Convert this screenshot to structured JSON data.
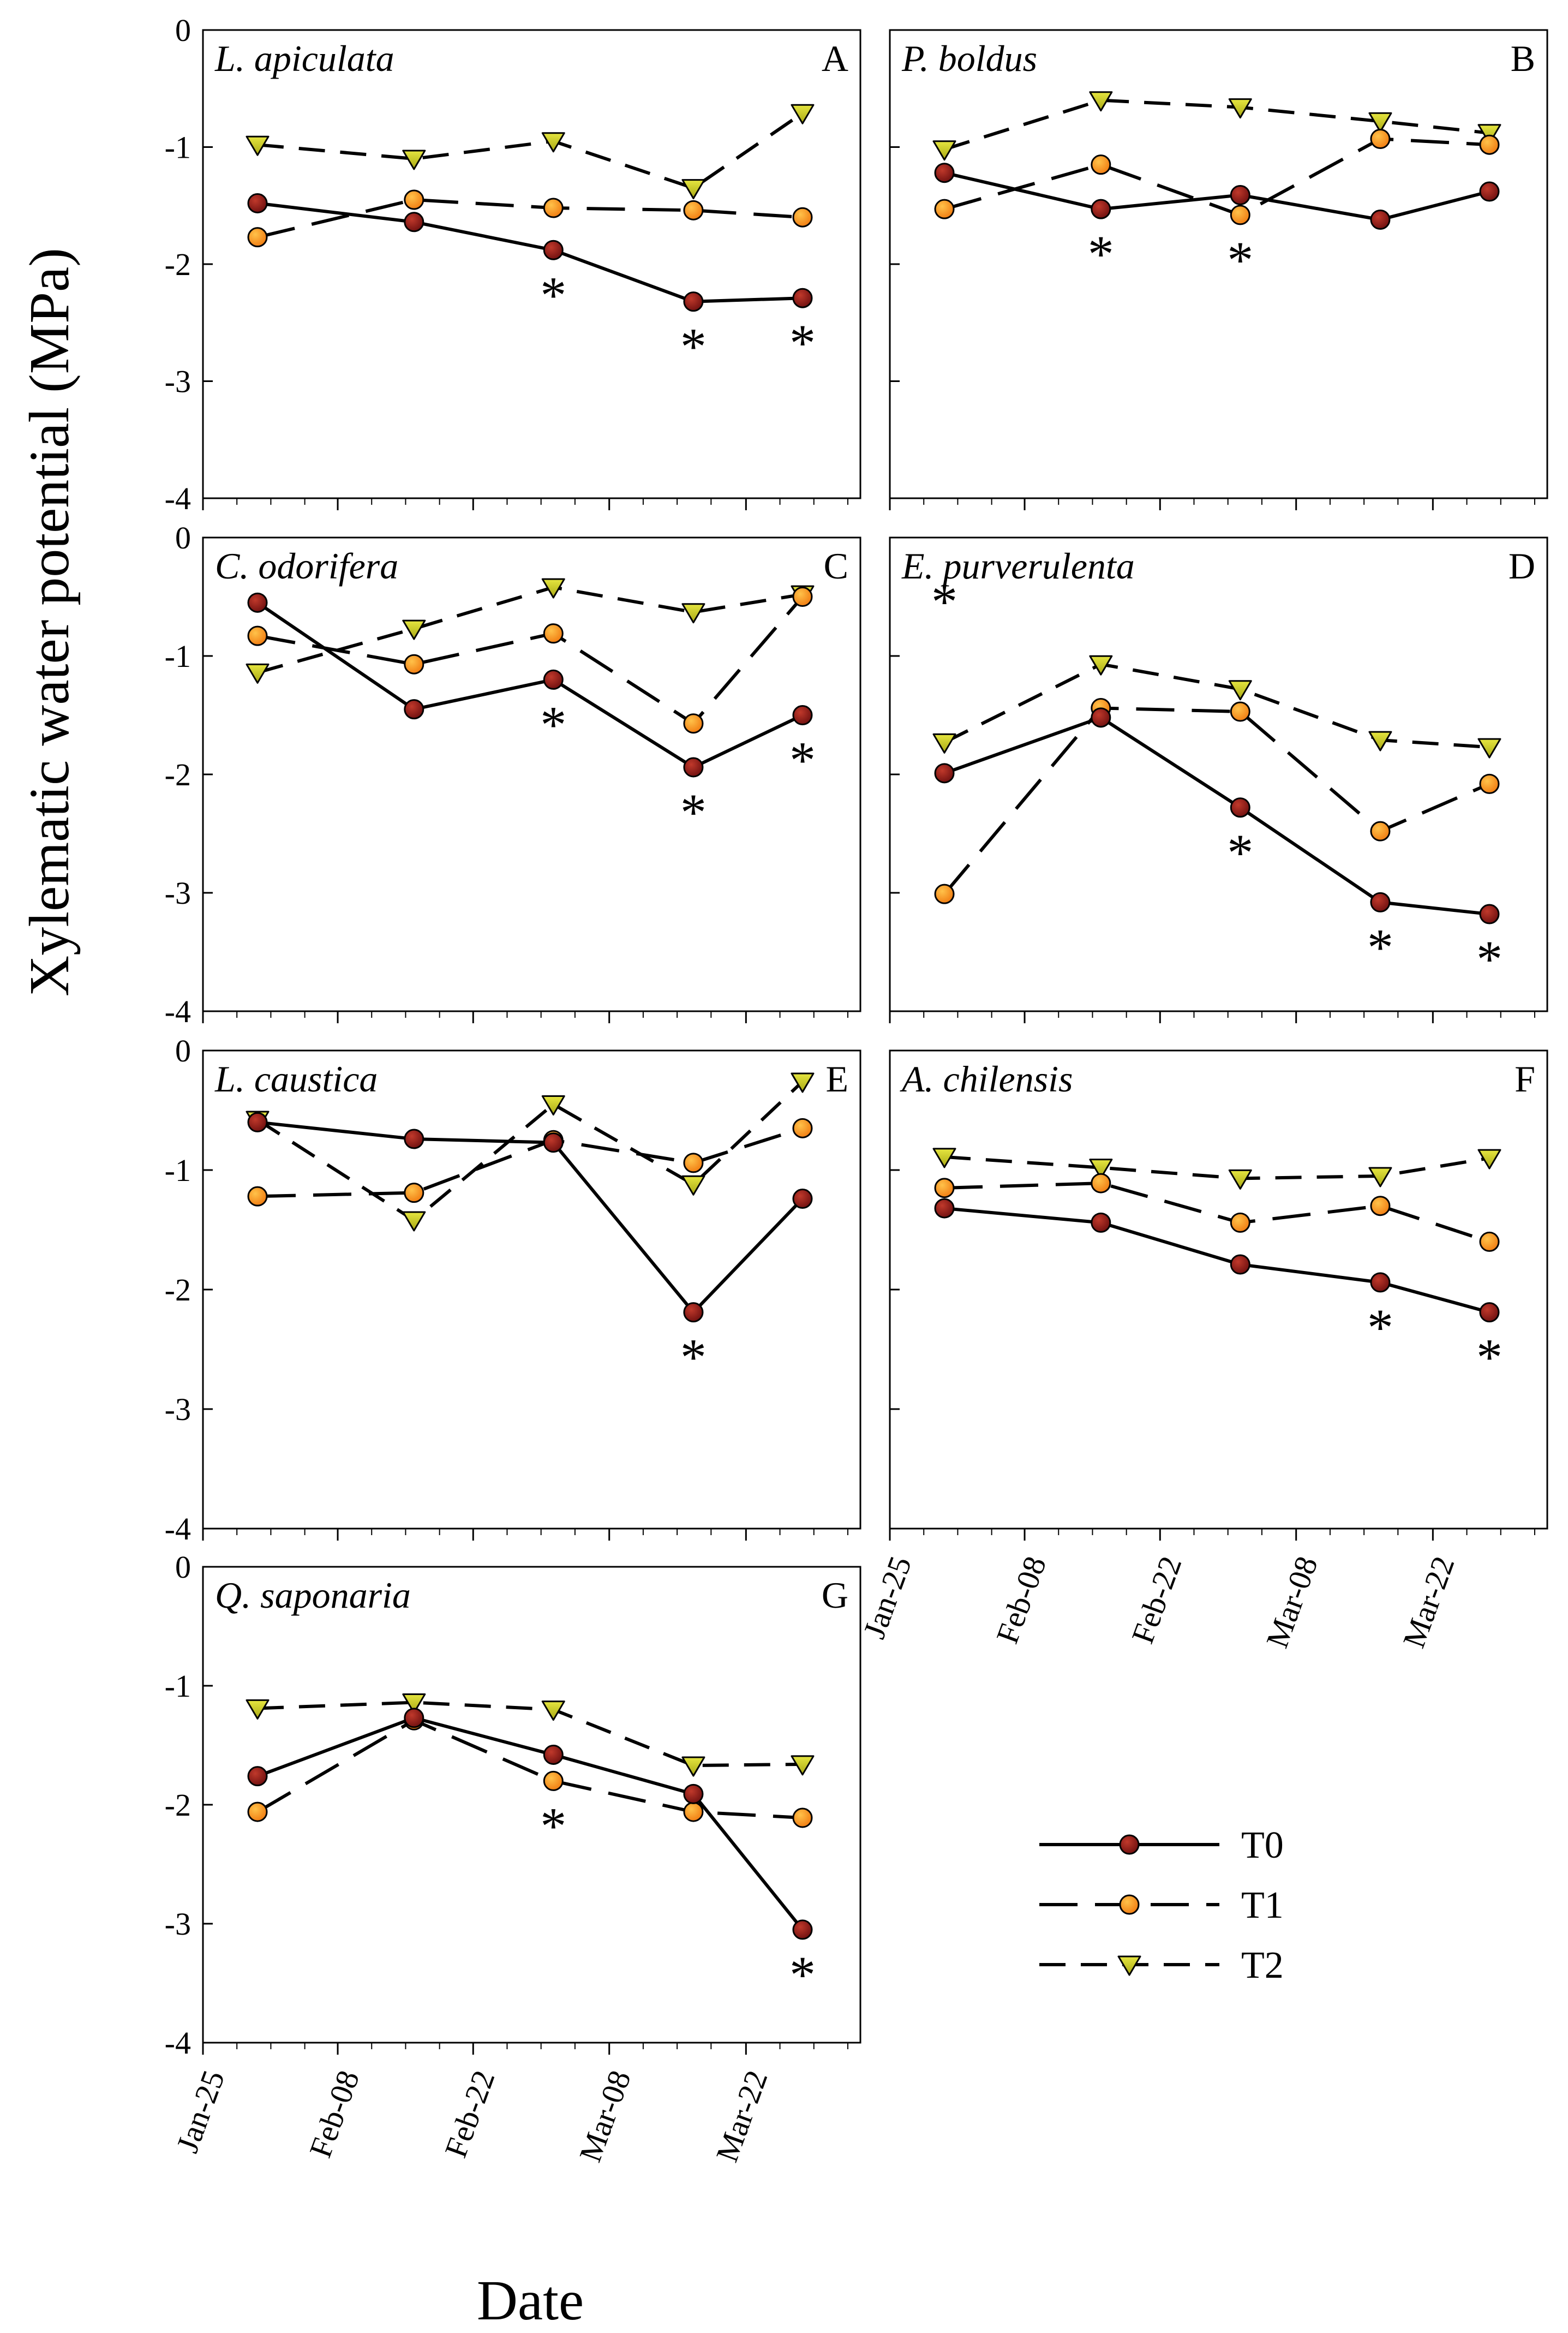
{
  "figure": {
    "y_axis_title": "Xylematic water potential (MPa)",
    "x_axis_title": "Date",
    "series_styles": {
      "T0": {
        "line": "solid",
        "marker": "circle",
        "fill": "#8B1A1A"
      },
      "T1": {
        "line": "long-dash",
        "marker": "circle",
        "fill": "#FF9A1F"
      },
      "T2": {
        "line": "dash",
        "marker": "triangle-down",
        "fill": "#C8C81E"
      }
    },
    "legend": [
      "T0",
      "T1",
      "T2"
    ]
  },
  "chart_data": [
    {
      "type": "line",
      "panel": "A",
      "title": "L. apiculata",
      "x_tick_labels": [],
      "ylim": [
        -4,
        0
      ],
      "y_ticks": [
        "0",
        "-1",
        "-2",
        "-3",
        "-4"
      ],
      "x": [
        "Jan-30",
        "Feb-13",
        "Feb-27",
        "Mar-13",
        "Mar-25"
      ],
      "series": [
        {
          "name": "T0",
          "values": [
            -1.48,
            -1.64,
            -1.88,
            -2.32,
            -2.29
          ]
        },
        {
          "name": "T1",
          "values": [
            -1.77,
            -1.45,
            -1.52,
            -1.54,
            -1.6
          ]
        },
        {
          "name": "T2",
          "values": [
            -0.98,
            -1.1,
            -0.95,
            -1.35,
            -0.71
          ]
        }
      ],
      "significance": [
        "",
        "",
        "*",
        "*",
        "*"
      ]
    },
    {
      "type": "line",
      "panel": "B",
      "title": "P. boldus",
      "x_tick_labels": [],
      "ylim": [
        -4,
        0
      ],
      "y_ticks": [],
      "x": [
        "Jan-30",
        "Feb-13",
        "Feb-27",
        "Mar-13",
        "Mar-25"
      ],
      "series": [
        {
          "name": "T0",
          "values": [
            -1.22,
            -1.53,
            -1.41,
            -1.62,
            -1.38
          ]
        },
        {
          "name": "T1",
          "values": [
            -1.53,
            -1.15,
            -1.58,
            -0.93,
            -0.98
          ]
        },
        {
          "name": "T2",
          "values": [
            -1.02,
            -0.6,
            -0.66,
            -0.78,
            -0.88
          ]
        }
      ],
      "significance": [
        "",
        "*",
        "*",
        "",
        ""
      ]
    },
    {
      "type": "line",
      "panel": "C",
      "title": "C. odorifera",
      "x_tick_labels": [],
      "ylim": [
        -4,
        0
      ],
      "y_ticks": [
        "0",
        "-1",
        "-2",
        "-3",
        "-4"
      ],
      "x": [
        "Jan-30",
        "Feb-13",
        "Feb-27",
        "Mar-13",
        "Mar-25"
      ],
      "series": [
        {
          "name": "T0",
          "values": [
            -0.55,
            -1.45,
            -1.2,
            -1.94,
            -1.5
          ]
        },
        {
          "name": "T1",
          "values": [
            -0.83,
            -1.07,
            -0.81,
            -1.57,
            -0.5
          ]
        },
        {
          "name": "T2",
          "values": [
            -1.14,
            -0.77,
            -0.42,
            -0.63,
            -0.48
          ]
        }
      ],
      "significance": [
        "",
        "",
        "*",
        "*",
        "*"
      ]
    },
    {
      "type": "line",
      "panel": "D",
      "title": "E. purverulenta",
      "x_tick_labels": [],
      "ylim": [
        -4,
        0
      ],
      "y_ticks": [],
      "x": [
        "Jan-30",
        "Feb-13",
        "Feb-27",
        "Mar-13",
        "Mar-25"
      ],
      "series": [
        {
          "name": "T0",
          "values": [
            -1.99,
            -1.52,
            -2.28,
            -3.08,
            -3.18
          ]
        },
        {
          "name": "T1",
          "values": [
            -3.01,
            -1.44,
            -1.47,
            -2.48,
            -2.08
          ]
        },
        {
          "name": "T2",
          "values": [
            -1.73,
            -1.07,
            -1.28,
            -1.71,
            -1.77
          ]
        }
      ],
      "significance": [
        "*",
        "",
        "*",
        "*",
        "*"
      ]
    },
    {
      "type": "line",
      "panel": "E",
      "title": "L. caustica",
      "x_tick_labels": [],
      "ylim": [
        -4,
        0
      ],
      "y_ticks": [
        "0",
        "-1",
        "-2",
        "-3",
        "-4"
      ],
      "x": [
        "Jan-30",
        "Feb-13",
        "Feb-27",
        "Mar-13",
        "Mar-25"
      ],
      "series": [
        {
          "name": "T0",
          "values": [
            -0.6,
            -0.74,
            -0.77,
            -2.19,
            -1.24
          ]
        },
        {
          "name": "T1",
          "values": [
            -1.22,
            -1.19,
            -0.75,
            -0.94,
            -0.65
          ]
        },
        {
          "name": "T2",
          "values": [
            -0.58,
            -1.42,
            -0.45,
            -1.12,
            -0.26
          ]
        }
      ],
      "significance": [
        "",
        "",
        "",
        "*",
        ""
      ]
    },
    {
      "type": "line",
      "panel": "F",
      "title": "A. chilensis",
      "x_tick_labels": [
        "Jan-25",
        "Feb-08",
        "Feb-22",
        "Mar-08",
        "Mar-22"
      ],
      "ylim": [
        -4,
        0
      ],
      "y_ticks": [],
      "x": [
        "Jan-30",
        "Feb-13",
        "Feb-27",
        "Mar-13",
        "Mar-25"
      ],
      "series": [
        {
          "name": "T0",
          "values": [
            -1.32,
            -1.44,
            -1.79,
            -1.94,
            -2.19
          ]
        },
        {
          "name": "T1",
          "values": [
            -1.15,
            -1.11,
            -1.44,
            -1.3,
            -1.6
          ]
        },
        {
          "name": "T2",
          "values": [
            -0.89,
            -0.98,
            -1.07,
            -1.05,
            -0.9
          ]
        }
      ],
      "significance": [
        "",
        "",
        "",
        "*",
        "*"
      ]
    },
    {
      "type": "line",
      "panel": "G",
      "title": "Q. saponaria",
      "x_tick_labels": [
        "Jan-25",
        "Feb-08",
        "Feb-22",
        "Mar-08",
        "Mar-22"
      ],
      "ylim": [
        -4,
        0
      ],
      "y_ticks": [
        "0",
        "-1",
        "-2",
        "-3",
        "-4"
      ],
      "x": [
        "Jan-30",
        "Feb-13",
        "Feb-27",
        "Mar-13",
        "Mar-25"
      ],
      "series": [
        {
          "name": "T0",
          "values": [
            -1.76,
            -1.27,
            -1.58,
            -1.91,
            -3.05
          ]
        },
        {
          "name": "T1",
          "values": [
            -2.06,
            -1.29,
            -1.8,
            -2.06,
            -2.11
          ]
        },
        {
          "name": "T2",
          "values": [
            -1.19,
            -1.14,
            -1.2,
            -1.67,
            -1.66
          ]
        }
      ],
      "significance": [
        "",
        "",
        "*",
        "",
        "*"
      ]
    }
  ]
}
